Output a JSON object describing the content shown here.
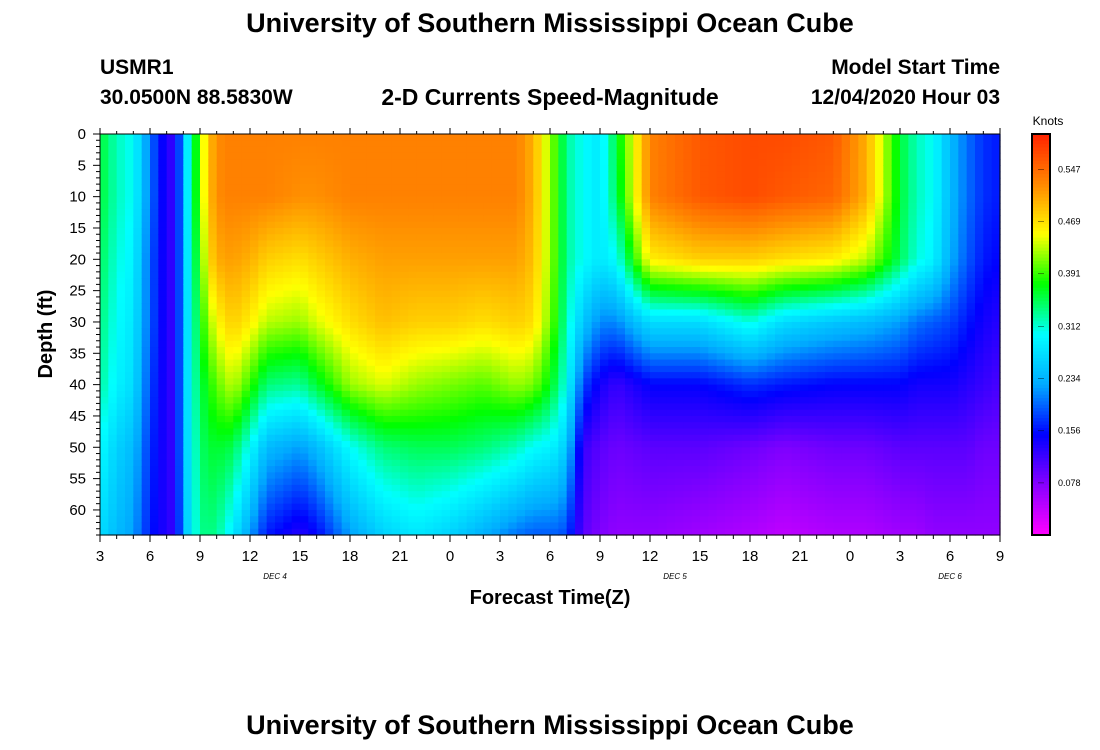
{
  "header": {
    "title_top": "University of Southern Mississippi Ocean Cube",
    "title_bottom": "University of Southern Mississippi Ocean Cube",
    "station": "USMR1",
    "coords": "30.0500N 88.5830W",
    "plot_title": "2-D Currents Speed-Magnitude",
    "model_label": "Model Start Time",
    "model_time": "12/04/2020 Hour 03"
  },
  "chart_data": {
    "type": "heatmap",
    "title": "2-D Currents Speed-Magnitude",
    "xlabel": "Forecast Time(Z)",
    "ylabel": "Depth (ft)",
    "colorbar_label": "Knots",
    "x_ticks": [
      "3",
      "6",
      "9",
      "12",
      "15",
      "18",
      "21",
      "0",
      "3",
      "6",
      "9",
      "12",
      "15",
      "18",
      "21",
      "0",
      "3",
      "6",
      "9"
    ],
    "day_labels": [
      {
        "label": "DEC 4",
        "at_tick": 3.5
      },
      {
        "label": "DEC 5",
        "at_tick": 11.5
      },
      {
        "label": "DEC 6",
        "at_tick": 17
      }
    ],
    "y_ticks": [
      0,
      5,
      10,
      15,
      20,
      25,
      30,
      35,
      40,
      45,
      50,
      55,
      60
    ],
    "ylim": [
      0,
      64
    ],
    "xlim_hours": [
      0,
      54
    ],
    "colorbar_ticks": [
      0.078,
      0.156,
      0.234,
      0.312,
      0.391,
      0.469,
      0.547
    ],
    "colorbar_range": [
      0.0,
      0.6
    ],
    "colormap": [
      "#ff00ff",
      "#8800ff",
      "#0000ff",
      "#00aaff",
      "#00ffff",
      "#00ff00",
      "#ffff00",
      "#ff8800",
      "#ff2200"
    ],
    "depths_ft": [
      0,
      10,
      20,
      30,
      40,
      50,
      64
    ],
    "time_hours": [
      0,
      1,
      2,
      3,
      4,
      4.5,
      5,
      5.5,
      6,
      6.5,
      7,
      7.5,
      8,
      9,
      10,
      12,
      13,
      15,
      17,
      19,
      21,
      23,
      25,
      26,
      27,
      27.5,
      28,
      29,
      30,
      31,
      33,
      36,
      39,
      41,
      44,
      46,
      48,
      49,
      50,
      51,
      52,
      53,
      54
    ],
    "speed_knots_by_time": [
      [
        0.36,
        0.36,
        0.35,
        0.34,
        0.33,
        0.3,
        0.27
      ],
      [
        0.32,
        0.32,
        0.31,
        0.3,
        0.29,
        0.26,
        0.24
      ],
      [
        0.3,
        0.3,
        0.29,
        0.28,
        0.27,
        0.24,
        0.22
      ],
      [
        0.2,
        0.2,
        0.19,
        0.19,
        0.18,
        0.17,
        0.16
      ],
      [
        0.13,
        0.13,
        0.13,
        0.13,
        0.13,
        0.13,
        0.13
      ],
      [
        0.12,
        0.12,
        0.12,
        0.12,
        0.12,
        0.12,
        0.12
      ],
      [
        0.24,
        0.24,
        0.24,
        0.24,
        0.24,
        0.24,
        0.23
      ],
      [
        0.33,
        0.33,
        0.32,
        0.31,
        0.31,
        0.3,
        0.29
      ],
      [
        0.41,
        0.41,
        0.39,
        0.37,
        0.35,
        0.34,
        0.33
      ],
      [
        0.49,
        0.49,
        0.47,
        0.42,
        0.38,
        0.36,
        0.34
      ],
      [
        0.52,
        0.52,
        0.5,
        0.45,
        0.4,
        0.36,
        0.33
      ],
      [
        0.53,
        0.53,
        0.51,
        0.47,
        0.42,
        0.36,
        0.31
      ],
      [
        0.53,
        0.53,
        0.51,
        0.48,
        0.43,
        0.35,
        0.28
      ],
      [
        0.53,
        0.53,
        0.5,
        0.46,
        0.39,
        0.3,
        0.22
      ],
      [
        0.53,
        0.53,
        0.48,
        0.43,
        0.34,
        0.24,
        0.16
      ],
      [
        0.53,
        0.52,
        0.47,
        0.42,
        0.33,
        0.22,
        0.13
      ],
      [
        0.53,
        0.52,
        0.48,
        0.44,
        0.36,
        0.24,
        0.15
      ],
      [
        0.53,
        0.53,
        0.5,
        0.47,
        0.42,
        0.3,
        0.22
      ],
      [
        0.53,
        0.53,
        0.51,
        0.49,
        0.44,
        0.34,
        0.26
      ],
      [
        0.53,
        0.53,
        0.51,
        0.48,
        0.42,
        0.35,
        0.28
      ],
      [
        0.53,
        0.53,
        0.51,
        0.48,
        0.41,
        0.35,
        0.26
      ],
      [
        0.53,
        0.53,
        0.51,
        0.47,
        0.4,
        0.34,
        0.23
      ],
      [
        0.53,
        0.53,
        0.51,
        0.48,
        0.42,
        0.32,
        0.2
      ],
      [
        0.5,
        0.5,
        0.49,
        0.47,
        0.41,
        0.3,
        0.19
      ],
      [
        0.42,
        0.42,
        0.42,
        0.41,
        0.37,
        0.29,
        0.19
      ],
      [
        0.38,
        0.38,
        0.38,
        0.37,
        0.34,
        0.28,
        0.19
      ],
      [
        0.33,
        0.33,
        0.33,
        0.32,
        0.3,
        0.25,
        0.18
      ],
      [
        0.3,
        0.3,
        0.3,
        0.25,
        0.18,
        0.12,
        0.1
      ],
      [
        0.28,
        0.28,
        0.28,
        0.21,
        0.14,
        0.1,
        0.08
      ],
      [
        0.36,
        0.35,
        0.3,
        0.21,
        0.12,
        0.09,
        0.07
      ],
      [
        0.53,
        0.53,
        0.46,
        0.27,
        0.15,
        0.1,
        0.07
      ],
      [
        0.56,
        0.56,
        0.48,
        0.27,
        0.15,
        0.1,
        0.06
      ],
      [
        0.57,
        0.57,
        0.48,
        0.31,
        0.17,
        0.09,
        0.05
      ],
      [
        0.57,
        0.56,
        0.47,
        0.27,
        0.16,
        0.08,
        0.04
      ],
      [
        0.56,
        0.55,
        0.46,
        0.25,
        0.15,
        0.09,
        0.05
      ],
      [
        0.5,
        0.5,
        0.43,
        0.24,
        0.15,
        0.09,
        0.05
      ],
      [
        0.36,
        0.36,
        0.35,
        0.22,
        0.15,
        0.1,
        0.06
      ],
      [
        0.32,
        0.32,
        0.31,
        0.2,
        0.14,
        0.1,
        0.06
      ],
      [
        0.3,
        0.3,
        0.29,
        0.19,
        0.14,
        0.1,
        0.07
      ],
      [
        0.24,
        0.24,
        0.23,
        0.18,
        0.14,
        0.1,
        0.07
      ],
      [
        0.2,
        0.2,
        0.19,
        0.16,
        0.13,
        0.1,
        0.07
      ],
      [
        0.17,
        0.17,
        0.16,
        0.14,
        0.12,
        0.09,
        0.07
      ],
      [
        0.16,
        0.16,
        0.15,
        0.13,
        0.11,
        0.09,
        0.07
      ]
    ]
  }
}
